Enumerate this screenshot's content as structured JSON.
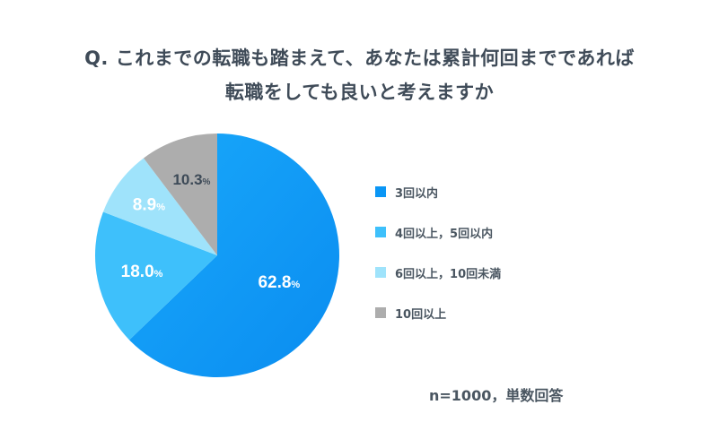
{
  "title_line1": "Q. これまでの転職も踏まえて、あなたは累計何回までであれば",
  "title_line2": "転職をしても良いと考えますか",
  "note": "n=1000，単数回答",
  "colors": {
    "primary": "#0a96f5",
    "light_blue": "#3ec0fb",
    "pale_blue": "#9fe3fb",
    "gray": "#adadad"
  },
  "chart_data": {
    "type": "pie",
    "title": "Q. これまでの転職も踏まえて、あなたは累計何回までであれば転職をしても良いと考えますか",
    "unit": "%",
    "start_angle_deg": 0,
    "direction": "clockwise",
    "legend_position": "right",
    "slices": [
      {
        "label": "3回以内",
        "value": 62.8,
        "display": "62.8",
        "color": "#0a96f5"
      },
      {
        "label": "4回以上，5回以内",
        "value": 18.0,
        "display": "18.0",
        "color": "#3ec0fb"
      },
      {
        "label": "6回以上，10回未満",
        "value": 8.9,
        "display": "8.9",
        "color": "#9fe3fb"
      },
      {
        "label": "10回以上",
        "value": 10.3,
        "display": "10.3",
        "color": "#adadad"
      }
    ]
  }
}
